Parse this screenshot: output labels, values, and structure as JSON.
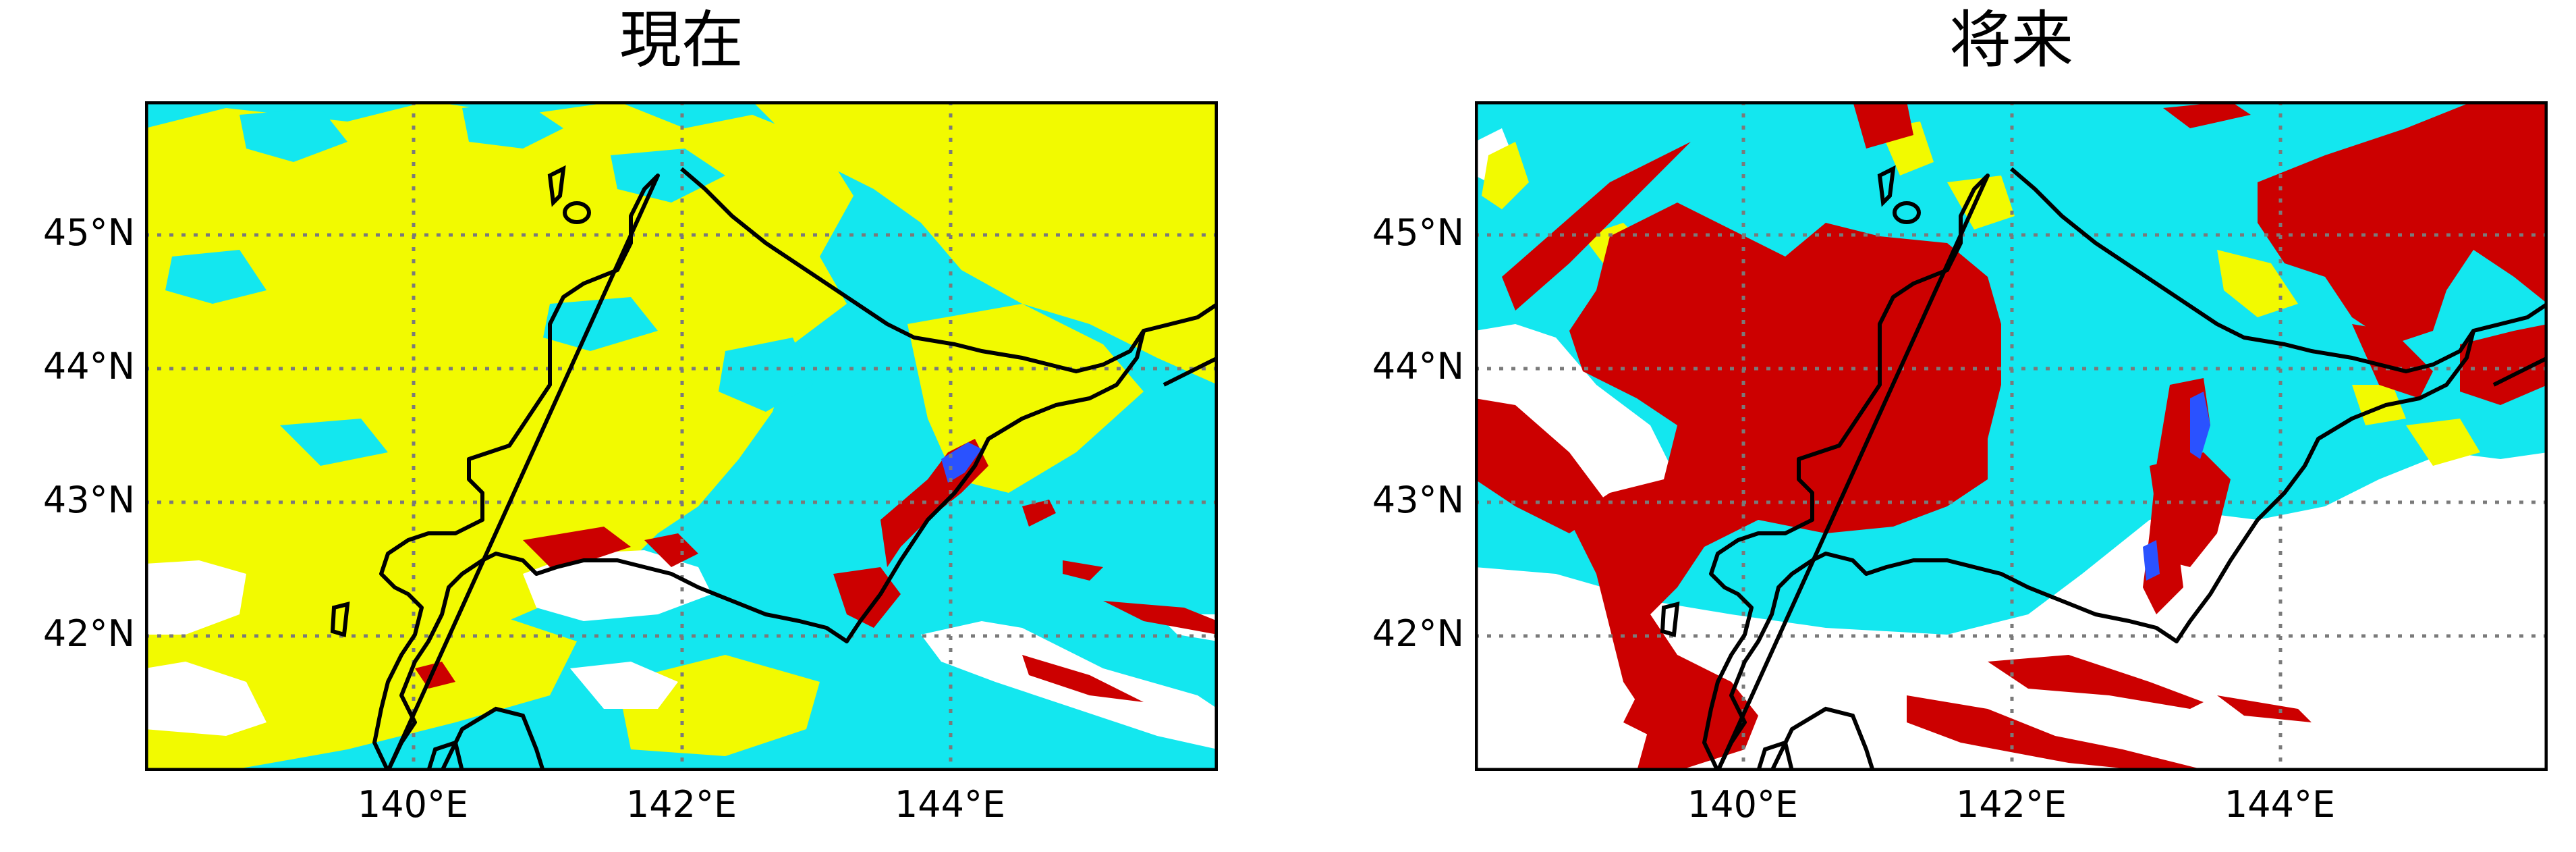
{
  "colors": {
    "cyan": "#13e7ef",
    "yellow": "#f2fa00",
    "red": "#cc0000",
    "blue": "#2a52ff",
    "white": "#ffffff",
    "coast": "#000000",
    "grid": "#7a7a7a"
  },
  "map_extent": {
    "lon": [
      138,
      146
    ],
    "lat": [
      41,
      46
    ]
  },
  "panels": [
    {
      "title": "現在",
      "lat_labels": [
        "45°N",
        "44°N",
        "43°N",
        "42°N"
      ],
      "lon_labels": [
        "140°E",
        "142°E",
        "144°E"
      ]
    },
    {
      "title": "将来",
      "lat_labels": [
        "45°N",
        "44°N",
        "43°N",
        "42°N"
      ],
      "lon_labels": [
        "140°E",
        "142°E",
        "144°E"
      ]
    }
  ]
}
